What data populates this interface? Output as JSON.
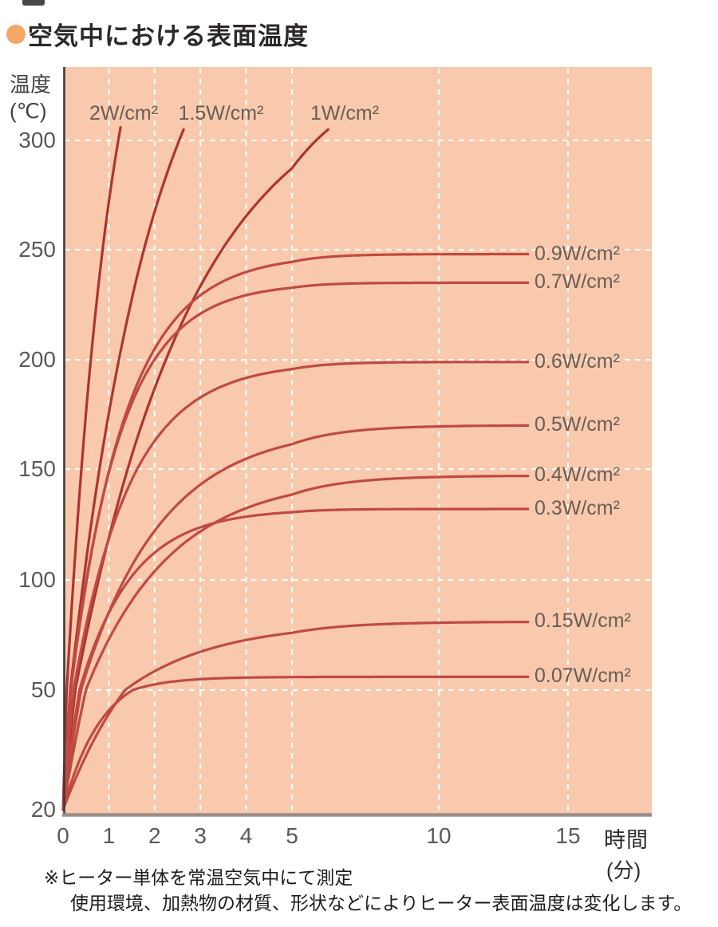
{
  "title": {
    "text": "空気中における表面温度"
  },
  "axes": {
    "y_title_line1": "温度",
    "y_title_line2": "(℃)",
    "x_title_line1": "時間",
    "x_title_line2": "(分)"
  },
  "footnote": {
    "line1": "※ヒーター単体を常温空気中にて測定",
    "line2": "使用環境、加熱物の材質、形状などによりヒーター表面温度は変化します。"
  },
  "colors": {
    "accent_bullet": "#f4a766",
    "plot_background": "#f8c9ad",
    "curve_rising": "#ad3530",
    "curve_flat": "#c04a42",
    "grid": "#ffffff",
    "axis_y": "#3c3a38",
    "axis_x": "#9b8e88",
    "tick_text": "#5c5956",
    "series_label_text": "#6a5d54",
    "title_text": "#2c2927",
    "footnote_text": "#1d1d1d"
  },
  "chart_data": {
    "type": "line",
    "title": "空気中における表面温度",
    "xlabel": "時間(分)",
    "ylabel": "温度(℃)",
    "x_ticks": [
      0,
      1,
      2,
      3,
      4,
      5,
      10,
      15
    ],
    "y_ticks": [
      300,
      250,
      200,
      150,
      100,
      50,
      20
    ],
    "xlim": [
      0,
      15
    ],
    "ylim": [
      20,
      310
    ],
    "grid": "white dashed, x axis compressed beyond 5 min, y axis segment 20-50 stretched",
    "legend_position": "labels at curve ends",
    "series": [
      {
        "name": "2W/cm²",
        "placement": "top",
        "label_cx": 155,
        "asymptote": 430,
        "tau_min": 1.05,
        "end_temp": 306,
        "values": [
          [
            0,
            20
          ],
          [
            0.5,
            175
          ],
          [
            1,
            272
          ],
          [
            1.26,
            306
          ]
        ]
      },
      {
        "name": "1.5W/cm²",
        "placement": "top",
        "label_cx": 277,
        "asymptote": 400,
        "tau_min": 1.9,
        "end_temp": 305,
        "values": [
          [
            0,
            20
          ],
          [
            1,
            175
          ],
          [
            2,
            267
          ],
          [
            2.63,
            305
          ]
        ]
      },
      {
        "name": "1W/cm²",
        "placement": "top",
        "label_cx": 432,
        "asymptote": 335,
        "tau_min": 2.65,
        "end_temp": 305,
        "values": [
          [
            0,
            20
          ],
          [
            1,
            119
          ],
          [
            2,
            187
          ],
          [
            3,
            234
          ],
          [
            4,
            265
          ],
          [
            5,
            287
          ],
          [
            6.23,
            305
          ]
        ]
      },
      {
        "name": "0.9W/cm²",
        "placement": "right",
        "asymptote": 248,
        "tau_min": 1.2,
        "values": [
          [
            0,
            20
          ],
          [
            1,
            149
          ],
          [
            2,
            205
          ],
          [
            3,
            229
          ],
          [
            5,
            245
          ],
          [
            10,
            248
          ],
          [
            13.5,
            248
          ]
        ]
      },
      {
        "name": "0.7W/cm²",
        "placement": "right",
        "asymptote": 235,
        "tau_min": 1.1,
        "values": [
          [
            0,
            20
          ],
          [
            1,
            148
          ],
          [
            2,
            200
          ],
          [
            3,
            221
          ],
          [
            5,
            233
          ],
          [
            10,
            235
          ],
          [
            13.5,
            235
          ]
        ]
      },
      {
        "name": "0.6W/cm²",
        "placement": "right",
        "asymptote": 199,
        "tau_min": 1.25,
        "values": [
          [
            0,
            20
          ],
          [
            1,
            119
          ],
          [
            2,
            163
          ],
          [
            3,
            183
          ],
          [
            5,
            196
          ],
          [
            10,
            199
          ],
          [
            13.5,
            199
          ]
        ]
      },
      {
        "name": "0.5W/cm²",
        "placement": "right",
        "asymptote": 170,
        "tau_min": 1.75,
        "values": [
          [
            0,
            20
          ],
          [
            1,
            85
          ],
          [
            2,
            122
          ],
          [
            3,
            143
          ],
          [
            5,
            161
          ],
          [
            10,
            170
          ],
          [
            13.5,
            170
          ]
        ]
      },
      {
        "name": "0.4W/cm²",
        "placement": "right",
        "asymptote": 147,
        "tau_min": 1.85,
        "values": [
          [
            0,
            20
          ],
          [
            1,
            73
          ],
          [
            2,
            104
          ],
          [
            3,
            122
          ],
          [
            5,
            139
          ],
          [
            10,
            147
          ],
          [
            13.5,
            147
          ]
        ]
      },
      {
        "name": "0.3W/cm²",
        "placement": "right",
        "asymptote": 132,
        "tau_min": 1.15,
        "values": [
          [
            0,
            20
          ],
          [
            1,
            85
          ],
          [
            2,
            112
          ],
          [
            3,
            124
          ],
          [
            5,
            131
          ],
          [
            10,
            132
          ],
          [
            13.5,
            132
          ]
        ]
      },
      {
        "name": "0.15W/cm²",
        "placement": "right",
        "asymptote": 81,
        "tau_min": 2.0,
        "values": [
          [
            0,
            20
          ],
          [
            1,
            44
          ],
          [
            2,
            59
          ],
          [
            3,
            67
          ],
          [
            5,
            76
          ],
          [
            10,
            81
          ],
          [
            13.5,
            81
          ]
        ]
      },
      {
        "name": "0.07W/cm²",
        "placement": "right",
        "asymptote": 56,
        "tau_min": 0.85,
        "values": [
          [
            0,
            20
          ],
          [
            1,
            45
          ],
          [
            2,
            53
          ],
          [
            3,
            55
          ],
          [
            5,
            56
          ],
          [
            10,
            56
          ],
          [
            13.5,
            56
          ]
        ]
      }
    ]
  }
}
